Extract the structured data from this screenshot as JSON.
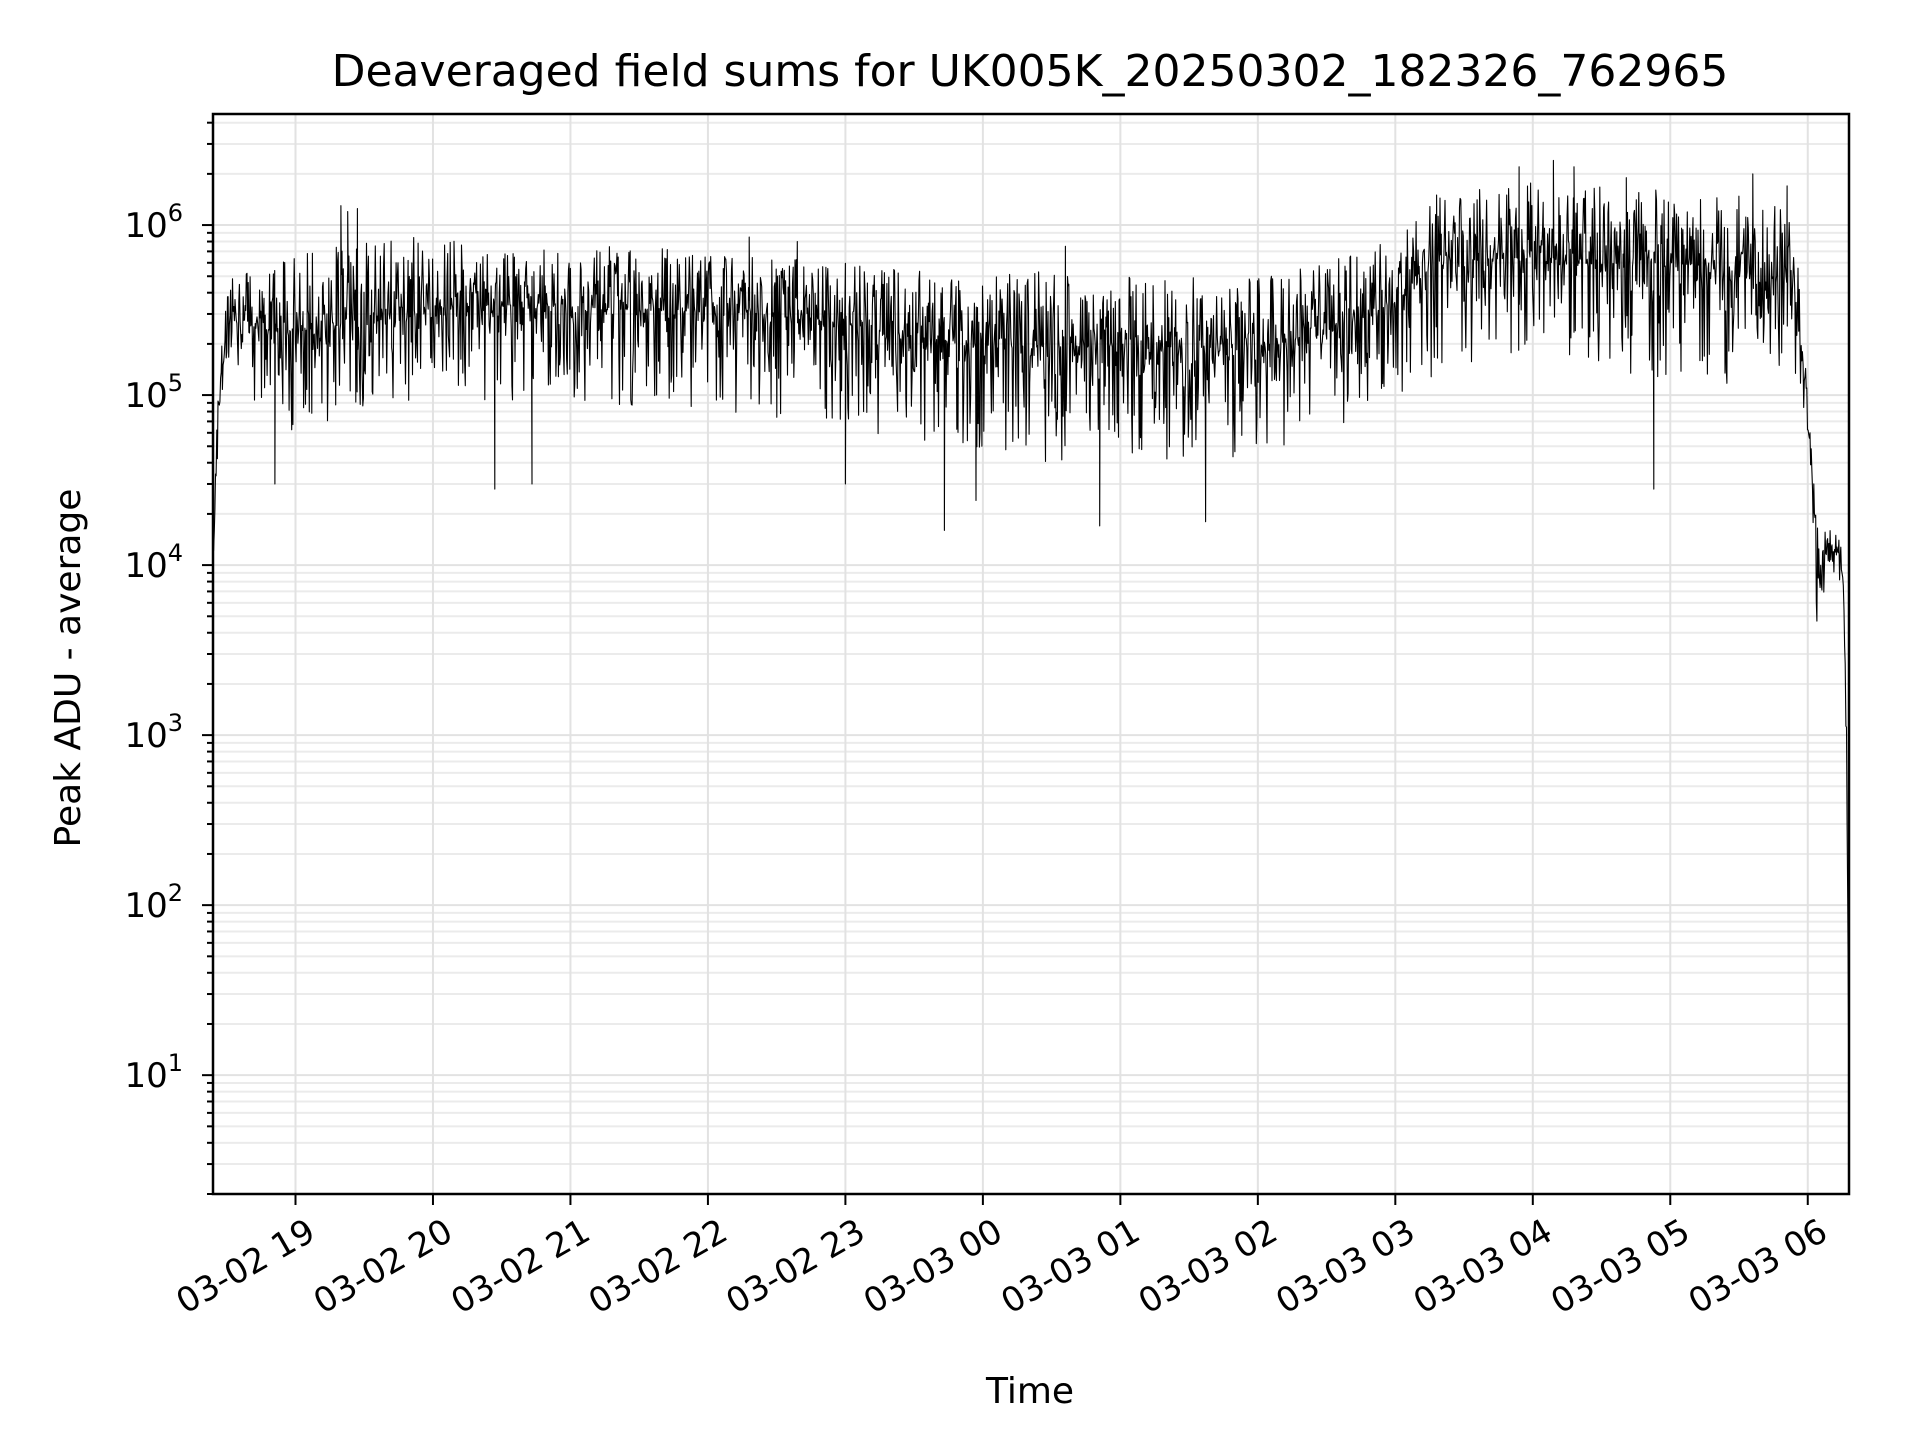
{
  "chart_data": {
    "type": "line",
    "title": "Deaveraged field sums for UK005K_20250302_182326_762965",
    "xlabel": "Time",
    "ylabel": "Peak ADU - average",
    "yscale": "log",
    "ylim": [
      2,
      4500000
    ],
    "xlim_hours": [
      18.4,
      30.3
    ],
    "grid": true,
    "line_color": "#000000",
    "x_ticks": [
      {
        "hour": 19,
        "label": "03-02 19"
      },
      {
        "hour": 20,
        "label": "03-02 20"
      },
      {
        "hour": 21,
        "label": "03-02 21"
      },
      {
        "hour": 22,
        "label": "03-02 22"
      },
      {
        "hour": 23,
        "label": "03-02 23"
      },
      {
        "hour": 24,
        "label": "03-03 00"
      },
      {
        "hour": 25,
        "label": "03-03 01"
      },
      {
        "hour": 26,
        "label": "03-03 02"
      },
      {
        "hour": 27,
        "label": "03-03 03"
      },
      {
        "hour": 28,
        "label": "03-03 04"
      },
      {
        "hour": 29,
        "label": "03-03 05"
      },
      {
        "hour": 30,
        "label": "03-03 06"
      }
    ],
    "y_ticks": [
      {
        "value": 10,
        "base": "10",
        "exp": "1"
      },
      {
        "value": 100,
        "base": "10",
        "exp": "2"
      },
      {
        "value": 1000,
        "base": "10",
        "exp": "3"
      },
      {
        "value": 10000,
        "base": "10",
        "exp": "4"
      },
      {
        "value": 100000,
        "base": "10",
        "exp": "5"
      },
      {
        "value": 1000000,
        "base": "10",
        "exp": "6"
      }
    ],
    "series": [
      {
        "name": "Peak ADU - average",
        "envelope": {
          "hours": [
            18.4,
            18.42,
            18.45,
            18.5,
            18.55,
            18.7,
            19.0,
            19.5,
            20.0,
            20.5,
            21.0,
            21.5,
            22.0,
            22.5,
            23.0,
            23.5,
            24.0,
            24.5,
            25.0,
            25.5,
            26.0,
            26.5,
            27.0,
            27.2,
            27.3,
            27.5,
            28.0,
            28.5,
            29.0,
            29.5,
            29.9,
            29.98,
            30.02,
            30.06,
            30.1,
            30.15,
            30.22,
            30.26,
            30.28,
            30.295,
            30.3
          ],
          "typical": [
            10000,
            30000,
            120000,
            250000,
            280000,
            250000,
            230000,
            300000,
            320000,
            340000,
            330000,
            320000,
            310000,
            300000,
            260000,
            220000,
            200000,
            190000,
            200000,
            190000,
            190000,
            230000,
            350000,
            500000,
            600000,
            620000,
            650000,
            600000,
            600000,
            550000,
            500000,
            120000,
            40000,
            15000,
            10000,
            13000,
            12000,
            8000,
            1000,
            30,
            4
          ],
          "low": [
            7000,
            20000,
            80000,
            150000,
            120000,
            80000,
            60000,
            80000,
            90000,
            90000,
            90000,
            80000,
            80000,
            70000,
            60000,
            50000,
            40000,
            40000,
            40000,
            40000,
            45000,
            60000,
            90000,
            130000,
            100000,
            150000,
            150000,
            130000,
            120000,
            110000,
            150000,
            60000,
            20000,
            4000,
            6000,
            9000,
            9000,
            5000,
            500,
            15,
            3
          ],
          "high": [
            12000,
            60000,
            200000,
            450000,
            500000,
            550000,
            700000,
            800000,
            900000,
            700000,
            750000,
            750000,
            700000,
            650000,
            600000,
            550000,
            500000,
            550000,
            500000,
            500000,
            500000,
            600000,
            900000,
            1200000,
            1500000,
            1600000,
            1800000,
            1700000,
            1600000,
            1500000,
            1200000,
            250000,
            60000,
            20000,
            18000,
            17000,
            15000,
            12000,
            2000,
            60,
            5
          ]
        },
        "spikes": [
          {
            "hour": 18.85,
            "value": 30000
          },
          {
            "hour": 19.33,
            "value": 1300000
          },
          {
            "hour": 19.38,
            "value": 1200000
          },
          {
            "hour": 19.45,
            "value": 1250000
          },
          {
            "hour": 20.45,
            "value": 28000
          },
          {
            "hour": 20.72,
            "value": 30000
          },
          {
            "hour": 22.3,
            "value": 850000
          },
          {
            "hour": 22.65,
            "value": 800000
          },
          {
            "hour": 23.0,
            "value": 30000
          },
          {
            "hour": 23.72,
            "value": 16000
          },
          {
            "hour": 23.95,
            "value": 24000
          },
          {
            "hour": 24.6,
            "value": 750000
          },
          {
            "hour": 24.85,
            "value": 17000
          },
          {
            "hour": 25.62,
            "value": 18000
          },
          {
            "hour": 27.3,
            "value": 1500000
          },
          {
            "hour": 27.9,
            "value": 2200000
          },
          {
            "hour": 28.15,
            "value": 2400000
          },
          {
            "hour": 28.3,
            "value": 2200000
          },
          {
            "hour": 28.68,
            "value": 1900000
          },
          {
            "hour": 28.88,
            "value": 28000
          },
          {
            "hour": 29.6,
            "value": 2000000
          },
          {
            "hour": 29.85,
            "value": 1700000
          }
        ]
      }
    ]
  }
}
